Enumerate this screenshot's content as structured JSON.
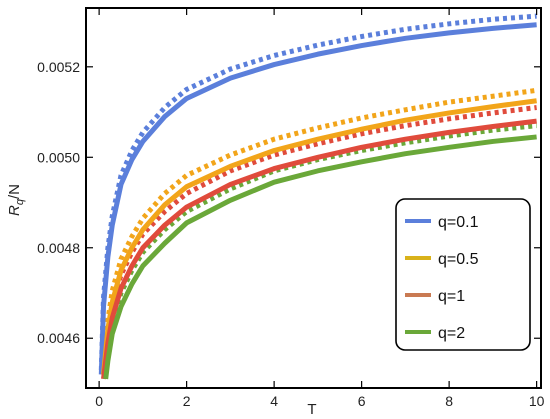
{
  "chart_data": {
    "type": "line",
    "xlabel": "T",
    "ylabel": {
      "main": "R",
      "sub": "q",
      "tail": "/N"
    },
    "xlim": [
      -0.3,
      10.1
    ],
    "ylim": [
      0.00449,
      0.00533
    ],
    "xticks": [
      0,
      2,
      4,
      6,
      8,
      10
    ],
    "xtick_labels": [
      "0",
      "2",
      "4",
      "6",
      "8",
      "10"
    ],
    "yticks": [
      0.0046,
      0.0048,
      0.005,
      0.0052
    ],
    "ytick_labels": [
      "0.0046",
      "0.0048",
      "0.0050",
      "0.0052"
    ],
    "grid": false,
    "legend_position": "bottom-right",
    "series": [
      {
        "name": "q=0.1",
        "color": "#5b7fdb",
        "style": "solid",
        "x": [
          0.05,
          0.1,
          0.2,
          0.3,
          0.5,
          0.75,
          1,
          1.5,
          2,
          3,
          4,
          5,
          6,
          7,
          8,
          9,
          10
        ],
        "y": [
          0.00452,
          0.00467,
          0.00478,
          0.00485,
          0.00494,
          0.004995,
          0.005035,
          0.00509,
          0.00513,
          0.005175,
          0.005205,
          0.005228,
          0.005247,
          0.005263,
          0.005275,
          0.005285,
          0.005293
        ]
      },
      {
        "name": "",
        "color": "#5b7fdb",
        "style": "dotted",
        "x": [
          0.05,
          0.1,
          0.2,
          0.3,
          0.5,
          0.75,
          1,
          1.5,
          2,
          3,
          4,
          5,
          6,
          7,
          8,
          9,
          10
        ],
        "y": [
          0.00453,
          0.00469,
          0.0048,
          0.00487,
          0.00496,
          0.005015,
          0.005055,
          0.00511,
          0.00515,
          0.005195,
          0.005225,
          0.005248,
          0.005267,
          0.005283,
          0.005295,
          0.005305,
          0.005312
        ]
      },
      {
        "name": "q=0.5",
        "color": "#f2a51a",
        "style": "solid",
        "x": [
          0.1,
          0.2,
          0.3,
          0.5,
          0.75,
          1,
          1.5,
          2,
          3,
          4,
          5,
          6,
          7,
          8,
          9,
          10
        ],
        "y": [
          0.00452,
          0.00462,
          0.00468,
          0.00475,
          0.0048,
          0.00484,
          0.004895,
          0.004935,
          0.00498,
          0.005015,
          0.00504,
          0.005062,
          0.005082,
          0.005098,
          0.005112,
          0.005125
        ]
      },
      {
        "name": "",
        "color": "#f2a51a",
        "style": "dotted",
        "x": [
          0.1,
          0.2,
          0.3,
          0.5,
          0.75,
          1,
          1.5,
          2,
          3,
          4,
          5,
          6,
          7,
          8,
          9,
          10
        ],
        "y": [
          0.00453,
          0.00464,
          0.004705,
          0.004775,
          0.004825,
          0.004865,
          0.00492,
          0.00496,
          0.005005,
          0.00504,
          0.005065,
          0.005087,
          0.005105,
          0.005122,
          0.005135,
          0.005148
        ]
      },
      {
        "name": "q=1",
        "color": "#e04b3c",
        "style": "solid",
        "x": [
          0.1,
          0.2,
          0.3,
          0.5,
          0.75,
          1,
          1.5,
          2,
          3,
          4,
          5,
          6,
          7,
          8,
          9,
          10
        ],
        "y": [
          0.00451,
          0.00459,
          0.004645,
          0.00471,
          0.00476,
          0.0048,
          0.00485,
          0.00489,
          0.00494,
          0.004975,
          0.005,
          0.005022,
          0.00504,
          0.005055,
          0.005068,
          0.00508
        ]
      },
      {
        "name": "",
        "color": "#e04b3c",
        "style": "dotted",
        "x": [
          0.1,
          0.2,
          0.3,
          0.5,
          0.75,
          1,
          1.5,
          2,
          3,
          4,
          5,
          6,
          7,
          8,
          9,
          10
        ],
        "y": [
          0.00452,
          0.00461,
          0.00467,
          0.00474,
          0.00479,
          0.00483,
          0.00488,
          0.00492,
          0.00497,
          0.005005,
          0.00503,
          0.005052,
          0.00507,
          0.005085,
          0.005098,
          0.00511
        ]
      },
      {
        "name": "q=2",
        "color": "#6aa839",
        "style": "solid",
        "x": [
          0.15,
          0.2,
          0.3,
          0.5,
          0.75,
          1,
          1.5,
          2,
          3,
          4,
          5,
          6,
          7,
          8,
          9,
          10
        ],
        "y": [
          0.00451,
          0.00455,
          0.00461,
          0.00467,
          0.00472,
          0.00476,
          0.00481,
          0.004855,
          0.004905,
          0.004945,
          0.00497,
          0.00499,
          0.005008,
          0.005022,
          0.005035,
          0.005045
        ]
      },
      {
        "name": "",
        "color": "#6aa839",
        "style": "dotted",
        "x": [
          0.15,
          0.2,
          0.3,
          0.5,
          0.75,
          1,
          1.5,
          2,
          3,
          4,
          5,
          6,
          7,
          8,
          9,
          10
        ],
        "y": [
          0.00452,
          0.00457,
          0.00463,
          0.0047,
          0.00475,
          0.00479,
          0.00484,
          0.00488,
          0.00493,
          0.00497,
          0.004995,
          0.005015,
          0.005032,
          0.005047,
          0.00506,
          0.00507
        ]
      }
    ]
  }
}
